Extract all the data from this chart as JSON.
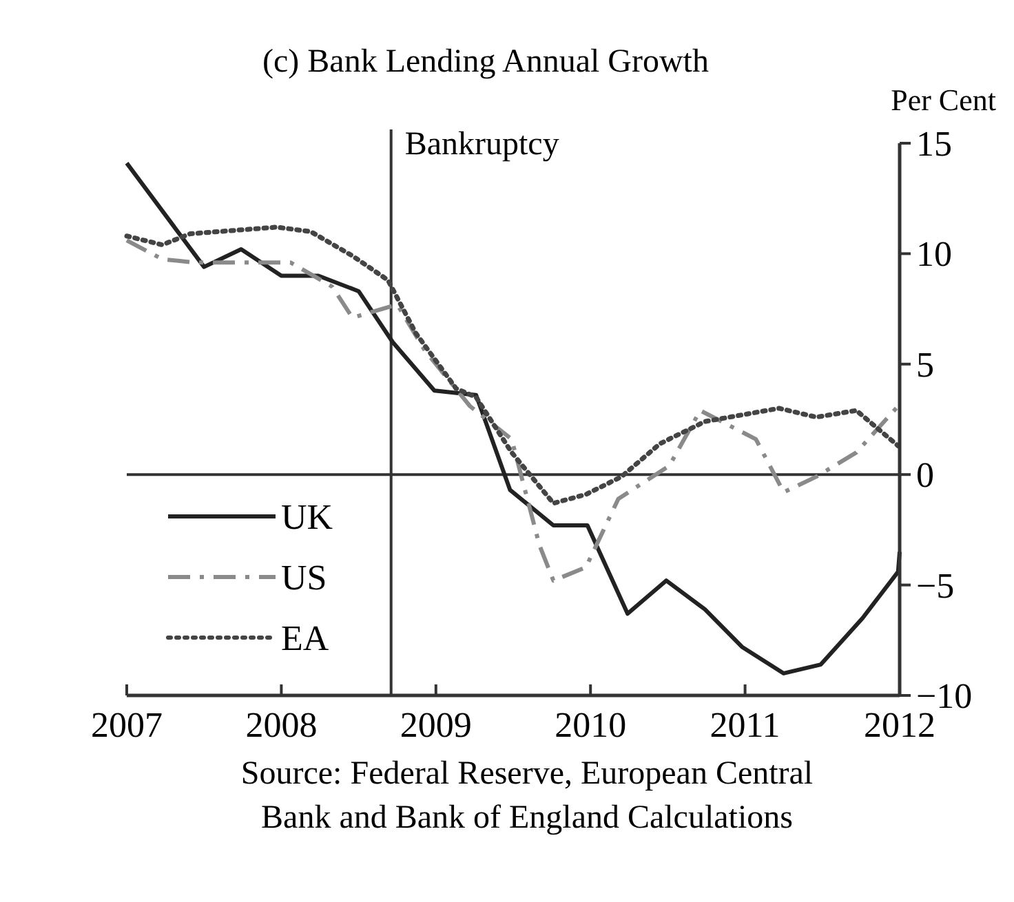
{
  "chart_data": {
    "type": "line",
    "title": "(c)  Bank Lending Annual Growth",
    "ylabel": "Per Cent",
    "xlim": [
      2007,
      2012
    ],
    "xticks": [
      2007,
      2008,
      2009,
      2010,
      2011,
      2012
    ],
    "ylim": [
      -10,
      15
    ],
    "yticks": [
      -10,
      -5,
      0,
      5,
      10,
      15
    ],
    "grid": false,
    "legend": "bottom left",
    "ref_lines": [
      {
        "axis": "y",
        "value": 0,
        "label": null
      },
      {
        "axis": "x",
        "value": 2008.71,
        "label": "Bankruptcy"
      }
    ],
    "annotations": [
      "Source:  Federal Reserve, European Central Bank and Bank of England Calculations"
    ],
    "series": [
      {
        "name": "UK",
        "color": "#222222",
        "line_style": "solid",
        "x": [
          2007.0,
          2007.5,
          2007.74,
          2008.0,
          2008.24,
          2008.5,
          2008.72,
          2008.99,
          2009.26,
          2009.48,
          2009.76,
          2009.98,
          2010.24,
          2010.49,
          2010.74,
          2010.98,
          2011.25,
          2011.49,
          2011.76,
          2011.99,
          2012.0
        ],
        "values": [
          14.1,
          9.4,
          10.2,
          9.0,
          9.0,
          8.3,
          6.0,
          3.8,
          3.6,
          -0.7,
          -2.3,
          -2.3,
          -6.3,
          -4.8,
          -6.1,
          -7.8,
          -9.0,
          -8.6,
          -6.5,
          -4.4,
          -3.5
        ]
      },
      {
        "name": "US",
        "color": "#8a8a8a",
        "line_style": "dashed",
        "x": [
          2007.0,
          2007.23,
          2007.44,
          2008.06,
          2008.33,
          2008.46,
          2008.75,
          2008.93,
          2009.22,
          2009.49,
          2009.67,
          2009.76,
          2009.97,
          2010.18,
          2010.51,
          2010.71,
          2011.07,
          2011.25,
          2011.46,
          2011.72,
          2011.99
        ],
        "values": [
          10.6,
          9.75,
          9.6,
          9.6,
          8.5,
          7.1,
          7.7,
          5.6,
          3.1,
          1.6,
          -3.2,
          -4.8,
          -4.2,
          -1.1,
          0.4,
          2.9,
          1.6,
          -0.8,
          -0.1,
          1.0,
          3.1
        ]
      },
      {
        "name": "EA",
        "color": "#444444",
        "line_style": "dotted",
        "x": [
          2007.0,
          2007.23,
          2007.41,
          2007.97,
          2008.19,
          2008.46,
          2008.69,
          2008.87,
          2009.13,
          2009.26,
          2009.49,
          2009.76,
          2009.97,
          2010.2,
          2010.45,
          2010.74,
          2011.22,
          2011.46,
          2011.72,
          2011.99
        ],
        "values": [
          10.8,
          10.4,
          10.9,
          11.2,
          11.0,
          9.9,
          8.8,
          6.4,
          3.9,
          3.5,
          1.0,
          -1.3,
          -0.9,
          -0.1,
          1.4,
          2.4,
          3.0,
          2.6,
          2.9,
          1.3
        ]
      }
    ]
  }
}
